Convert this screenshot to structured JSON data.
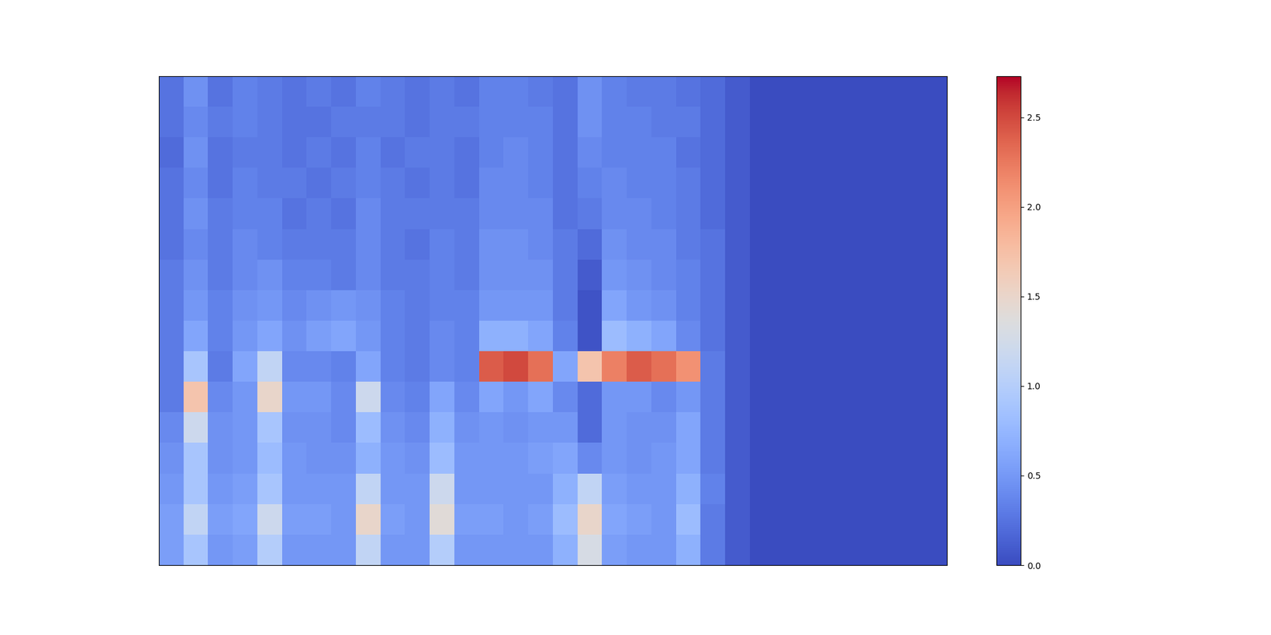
{
  "chart_data": {
    "type": "heatmap",
    "tick_labels": false,
    "color": "coolwarm",
    "color_range": [
      0,
      2.73
    ],
    "color_ticks": [
      {
        "value": 0,
        "label": "0.0"
      },
      {
        "value": 0.5,
        "label": "0.5"
      },
      {
        "value": 1,
        "label": "1.0"
      },
      {
        "value": 1.5,
        "label": "1.5"
      },
      {
        "value": 2,
        "label": "2.0"
      },
      {
        "value": 2.5,
        "label": "2.5"
      }
    ],
    "cells": [
      [
        0.25,
        0.45,
        0.25,
        0.35,
        0.3,
        0.25,
        0.3,
        0.25,
        0.35,
        0.3,
        0.25,
        0.3,
        0.25,
        0.35,
        0.35,
        0.3,
        0.25,
        0.45,
        0.35,
        0.3,
        0.3,
        0.25,
        0.2,
        0.1,
        0,
        0,
        0,
        0,
        0,
        0,
        0,
        0
      ],
      [
        0.25,
        0.4,
        0.3,
        0.35,
        0.3,
        0.25,
        0.25,
        0.3,
        0.3,
        0.3,
        0.25,
        0.3,
        0.3,
        0.35,
        0.35,
        0.35,
        0.25,
        0.45,
        0.35,
        0.35,
        0.3,
        0.3,
        0.2,
        0.1,
        0,
        0,
        0,
        0,
        0,
        0,
        0,
        0
      ],
      [
        0.2,
        0.45,
        0.25,
        0.3,
        0.3,
        0.25,
        0.3,
        0.25,
        0.35,
        0.25,
        0.3,
        0.3,
        0.25,
        0.35,
        0.4,
        0.35,
        0.25,
        0.4,
        0.35,
        0.35,
        0.35,
        0.25,
        0.2,
        0.1,
        0,
        0,
        0,
        0,
        0,
        0,
        0,
        0
      ],
      [
        0.25,
        0.4,
        0.25,
        0.35,
        0.3,
        0.3,
        0.25,
        0.3,
        0.35,
        0.3,
        0.25,
        0.3,
        0.25,
        0.4,
        0.4,
        0.35,
        0.25,
        0.35,
        0.4,
        0.35,
        0.35,
        0.3,
        0.2,
        0.1,
        0,
        0,
        0,
        0,
        0,
        0,
        0,
        0
      ],
      [
        0.25,
        0.45,
        0.3,
        0.35,
        0.35,
        0.25,
        0.3,
        0.25,
        0.4,
        0.3,
        0.3,
        0.3,
        0.3,
        0.4,
        0.4,
        0.4,
        0.25,
        0.3,
        0.4,
        0.4,
        0.35,
        0.3,
        0.2,
        0.1,
        0,
        0,
        0,
        0,
        0,
        0,
        0,
        0
      ],
      [
        0.25,
        0.4,
        0.3,
        0.4,
        0.35,
        0.3,
        0.3,
        0.3,
        0.4,
        0.3,
        0.25,
        0.35,
        0.3,
        0.45,
        0.45,
        0.4,
        0.3,
        0.2,
        0.45,
        0.4,
        0.4,
        0.3,
        0.25,
        0.1,
        0,
        0,
        0,
        0,
        0,
        0,
        0,
        0
      ],
      [
        0.3,
        0.45,
        0.3,
        0.4,
        0.45,
        0.35,
        0.35,
        0.3,
        0.4,
        0.3,
        0.3,
        0.35,
        0.3,
        0.45,
        0.45,
        0.45,
        0.3,
        0.1,
        0.5,
        0.45,
        0.4,
        0.35,
        0.25,
        0.1,
        0,
        0,
        0,
        0,
        0,
        0,
        0,
        0
      ],
      [
        0.3,
        0.5,
        0.35,
        0.45,
        0.5,
        0.4,
        0.45,
        0.5,
        0.45,
        0.35,
        0.3,
        0.35,
        0.35,
        0.5,
        0.5,
        0.5,
        0.3,
        0.05,
        0.6,
        0.5,
        0.45,
        0.35,
        0.25,
        0.1,
        0,
        0,
        0,
        0,
        0,
        0,
        0,
        0
      ],
      [
        0.3,
        0.6,
        0.35,
        0.5,
        0.6,
        0.45,
        0.55,
        0.6,
        0.5,
        0.35,
        0.3,
        0.4,
        0.35,
        0.7,
        0.7,
        0.6,
        0.35,
        0.05,
        0.8,
        0.7,
        0.6,
        0.4,
        0.25,
        0.1,
        0,
        0,
        0,
        0,
        0,
        0,
        0,
        0
      ],
      [
        0.3,
        0.9,
        0.3,
        0.6,
        1.1,
        0.4,
        0.4,
        0.35,
        0.6,
        0.35,
        0.3,
        0.4,
        0.35,
        2.4,
        2.5,
        2.3,
        0.6,
        1.7,
        2.2,
        2.4,
        2.3,
        2.1,
        0.3,
        0.1,
        0,
        0,
        0,
        0,
        0,
        0,
        0,
        0
      ],
      [
        0.3,
        1.7,
        0.4,
        0.5,
        1.5,
        0.5,
        0.5,
        0.4,
        1.2,
        0.4,
        0.35,
        0.6,
        0.4,
        0.6,
        0.5,
        0.6,
        0.4,
        0.2,
        0.5,
        0.5,
        0.4,
        0.5,
        0.3,
        0.1,
        0,
        0,
        0,
        0,
        0,
        0,
        0,
        0
      ],
      [
        0.4,
        1.2,
        0.45,
        0.5,
        0.9,
        0.45,
        0.45,
        0.4,
        0.8,
        0.45,
        0.4,
        0.7,
        0.45,
        0.5,
        0.45,
        0.5,
        0.5,
        0.2,
        0.5,
        0.45,
        0.45,
        0.6,
        0.3,
        0.1,
        0,
        0,
        0,
        0,
        0,
        0,
        0,
        0
      ],
      [
        0.45,
        0.9,
        0.45,
        0.5,
        0.8,
        0.5,
        0.45,
        0.45,
        0.7,
        0.5,
        0.45,
        0.8,
        0.5,
        0.5,
        0.5,
        0.55,
        0.6,
        0.4,
        0.5,
        0.45,
        0.5,
        0.6,
        0.3,
        0.1,
        0,
        0,
        0,
        0,
        0,
        0,
        0,
        0
      ],
      [
        0.5,
        0.9,
        0.5,
        0.55,
        0.9,
        0.5,
        0.5,
        0.5,
        1.1,
        0.5,
        0.5,
        1.2,
        0.5,
        0.5,
        0.5,
        0.5,
        0.7,
        1.1,
        0.55,
        0.5,
        0.5,
        0.7,
        0.35,
        0.1,
        0,
        0,
        0,
        0,
        0,
        0,
        0,
        0
      ],
      [
        0.55,
        1.1,
        0.55,
        0.6,
        1.2,
        0.55,
        0.55,
        0.5,
        1.5,
        0.55,
        0.5,
        1.4,
        0.55,
        0.55,
        0.5,
        0.55,
        0.8,
        1.5,
        0.6,
        0.55,
        0.5,
        0.8,
        0.3,
        0.1,
        0,
        0,
        0,
        0,
        0,
        0,
        0,
        0
      ],
      [
        0.55,
        0.9,
        0.5,
        0.55,
        1.0,
        0.5,
        0.5,
        0.5,
        1.1,
        0.5,
        0.5,
        1.0,
        0.5,
        0.5,
        0.5,
        0.5,
        0.7,
        1.3,
        0.55,
        0.5,
        0.5,
        0.7,
        0.3,
        0.1,
        0,
        0,
        0,
        0,
        0,
        0,
        0,
        0
      ]
    ]
  }
}
